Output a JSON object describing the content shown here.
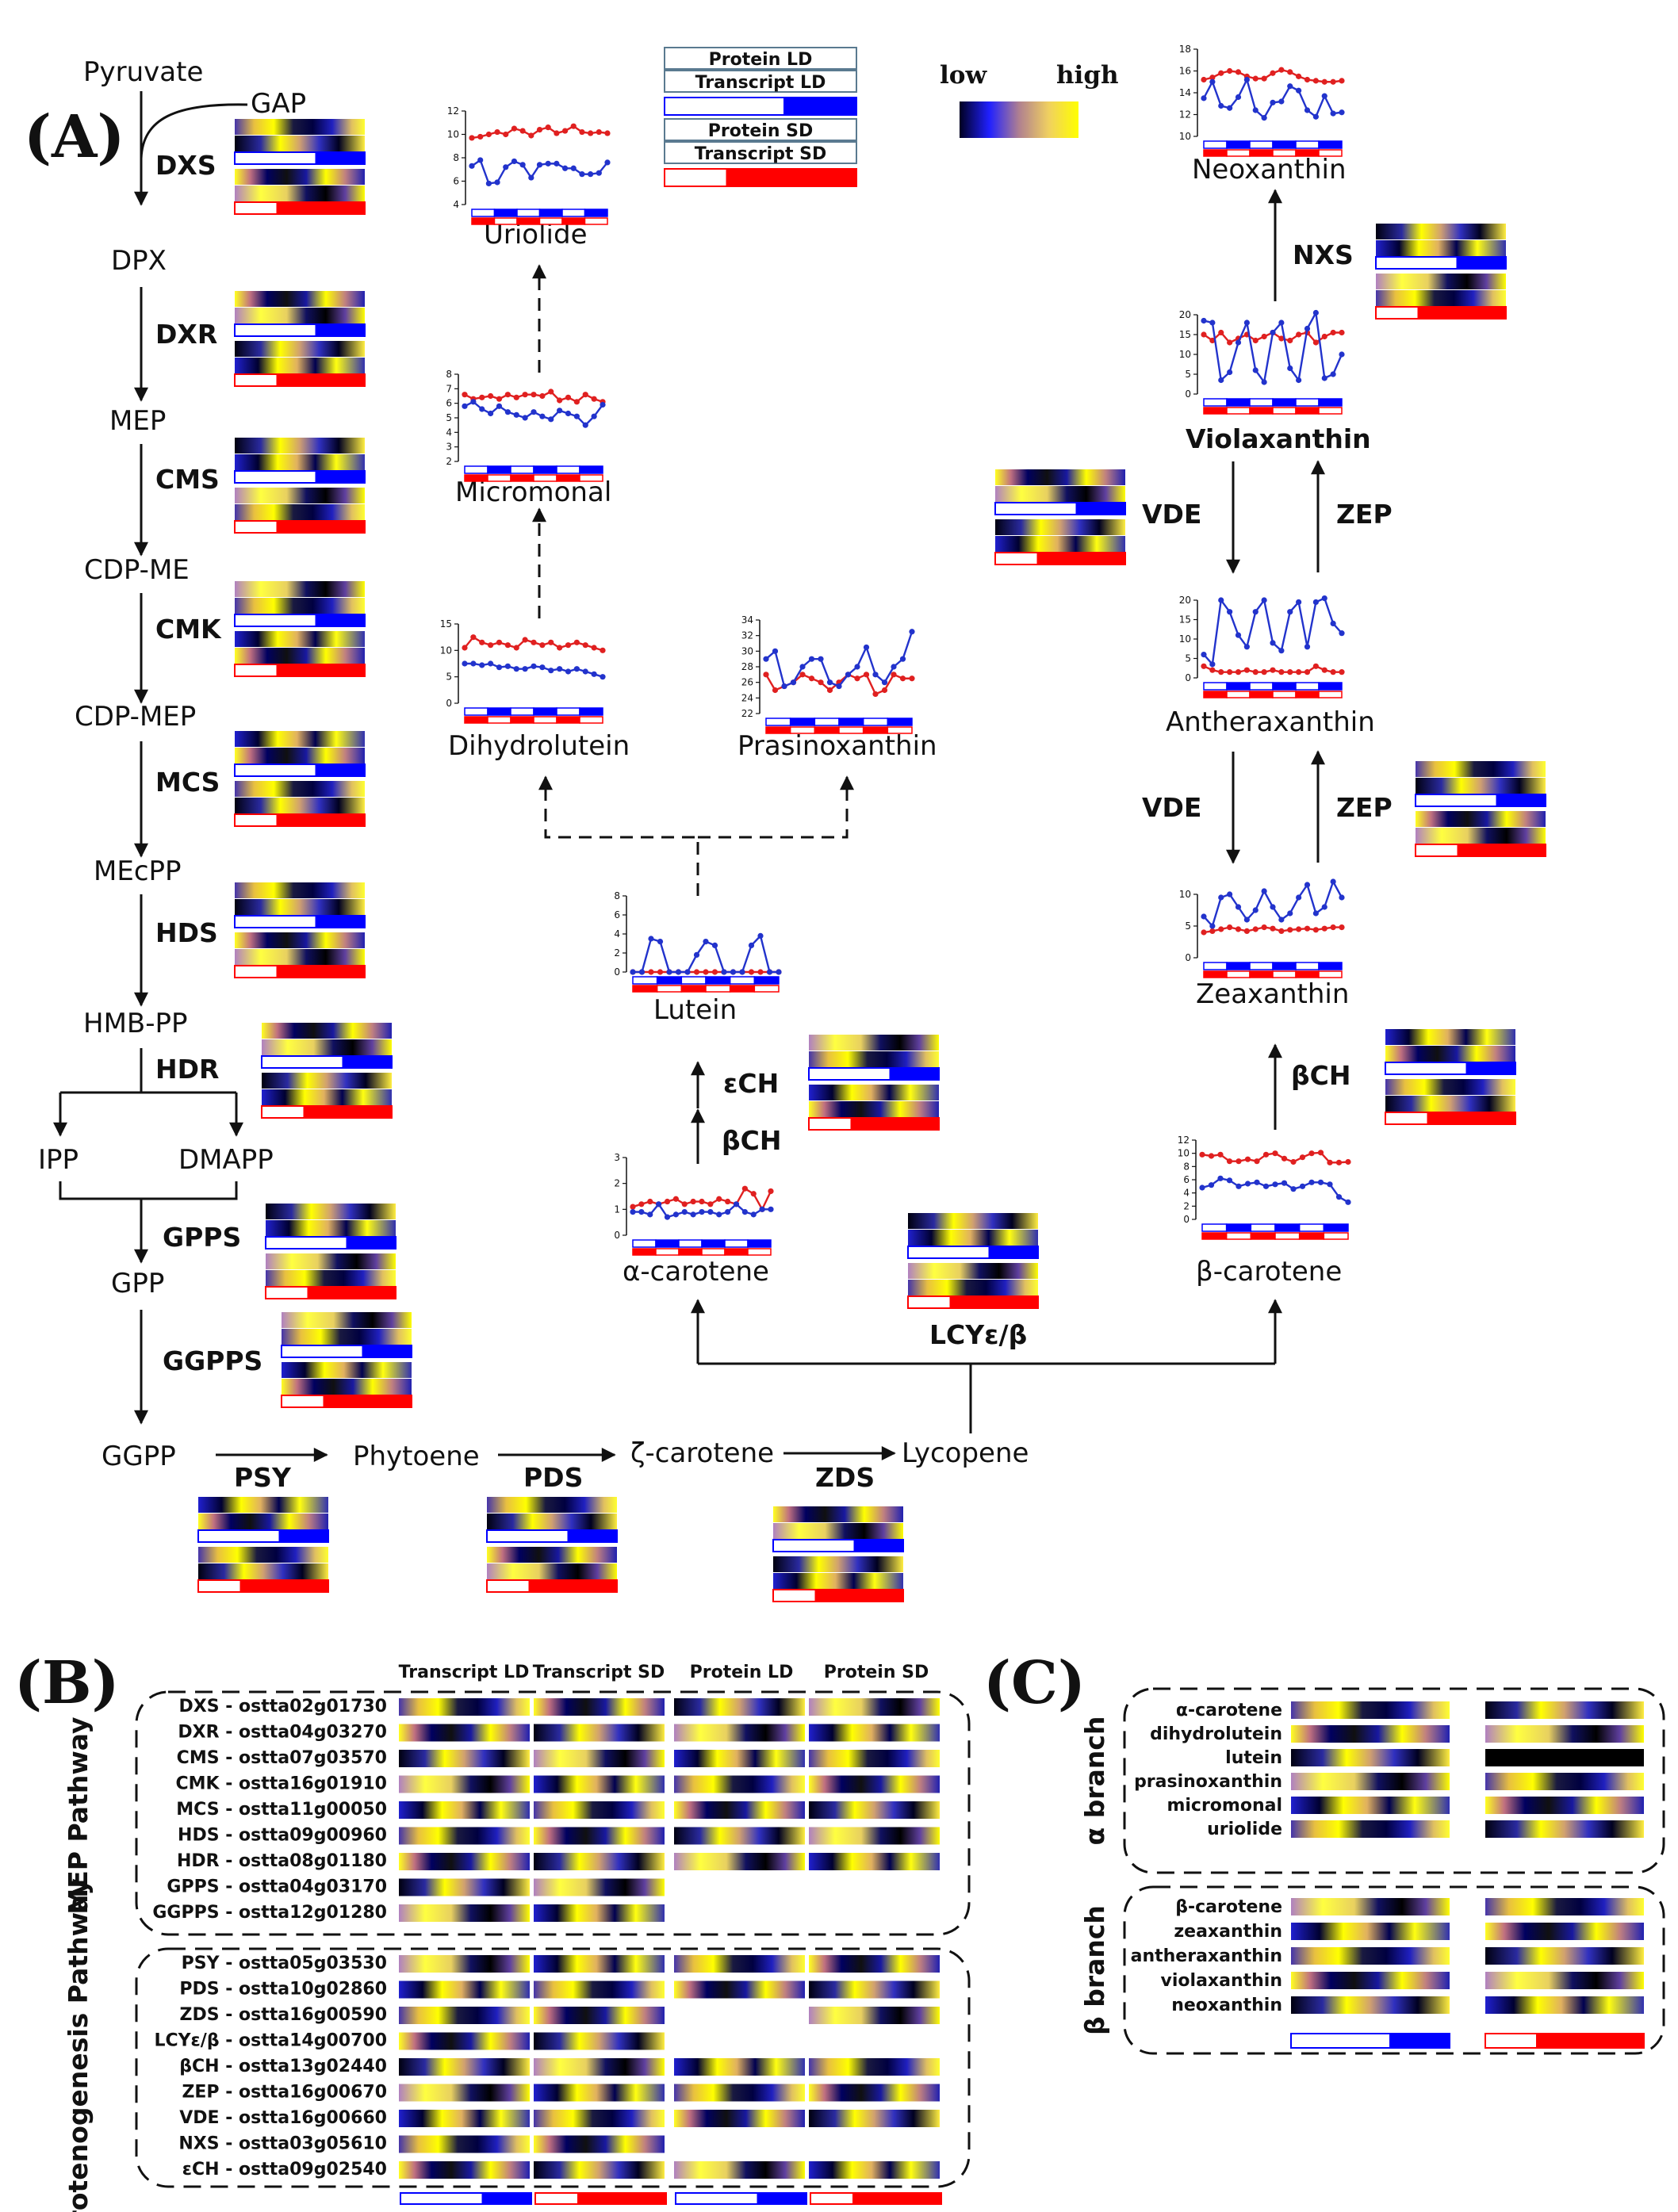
{
  "panels": {
    "a": "(A)",
    "b": "(B)",
    "c": "(C)"
  },
  "colors": {
    "low": "#000080",
    "high": "#ffff00",
    "protein_ld": "#0000ff",
    "transcript_ld": "#0000ff",
    "sd": "#ff0000",
    "ld_line": "#2233cc",
    "sd_line": "#e02020"
  },
  "legend": {
    "low": "low",
    "high": "high",
    "protein_ld": "Protein LD",
    "transcript_ld": "Transcript LD",
    "protein_sd": "Protein SD",
    "transcript_sd": "Transcript SD"
  },
  "mep": {
    "metabolites": [
      "Pyruvate",
      "GAP",
      "DPX",
      "MEP",
      "CDP-ME",
      "CDP-MEP",
      "MEcPP",
      "HMB-PP",
      "IPP",
      "DMAPP",
      "GPP",
      "GGPP"
    ],
    "enzymes": [
      "DXS",
      "DXR",
      "CMS",
      "CMK",
      "MCS",
      "HDS",
      "HDR",
      "GPPS",
      "GGPPS"
    ]
  },
  "carotenoid": {
    "metabolites": [
      "Phytoene",
      "ζ-carotene",
      "Lycopene",
      "α-carotene",
      "β-carotene",
      "Lutein",
      "Dihydrolutein",
      "Prasinoxanthin",
      "Micromonal",
      "Uriolide",
      "Zeaxanthin",
      "Antheraxanthin",
      "Violaxanthin",
      "Neoxanthin"
    ],
    "enzymes": [
      "PSY",
      "PDS",
      "ZDS",
      "LCYɛ/β",
      "βCH",
      "ɛCH",
      "VDE",
      "ZEP",
      "NXS"
    ]
  },
  "chart_data": [
    {
      "type": "line",
      "title": "Uriolide",
      "ylim": [
        4,
        12
      ],
      "yticks": [
        "4",
        "6",
        "8",
        "10",
        "12"
      ],
      "series": [
        {
          "values": [
            9.7,
            9.8,
            10,
            10.2,
            10,
            10.5,
            10.3,
            9.9,
            10.4,
            10.6,
            10.1,
            10.3,
            10.7,
            10.2,
            10.1,
            10.2,
            10.1
          ]
        },
        {
          "values": [
            7.3,
            7.8,
            5.8,
            5.9,
            7.2,
            7.7,
            7.4,
            6.3,
            7.4,
            7.5,
            7.5,
            7.1,
            7.1,
            6.6,
            6.6,
            6.7,
            7.6
          ]
        }
      ]
    },
    {
      "type": "line",
      "title": "Micromonal",
      "ylim": [
        2,
        8
      ],
      "yticks": [
        "2",
        "3",
        "4",
        "5",
        "6",
        "7",
        "8"
      ],
      "series": [
        {
          "values": [
            6.6,
            6.3,
            6.4,
            6.5,
            6.3,
            6.6,
            6.4,
            6.6,
            6.6,
            6.5,
            6.8,
            6.2,
            6.4,
            6.1,
            6.6,
            6.3,
            6.1
          ]
        },
        {
          "values": [
            5.8,
            6.1,
            5.6,
            5.3,
            5.8,
            5.4,
            5.2,
            5.0,
            5.4,
            5.1,
            4.9,
            5.5,
            5.3,
            5.1,
            4.5,
            5.1,
            5.9
          ]
        }
      ]
    },
    {
      "type": "line",
      "title": "Dihydrolutein",
      "ylim": [
        0,
        15
      ],
      "yticks": [
        "0",
        "5",
        "10",
        "15"
      ],
      "series": [
        {
          "values": [
            10.5,
            12.5,
            11.5,
            11,
            11.5,
            11,
            10.5,
            12,
            11.5,
            11,
            11.5,
            10.5,
            11,
            11.5,
            11,
            10.5,
            10
          ]
        },
        {
          "values": [
            7.5,
            7.5,
            7.2,
            7.5,
            6.8,
            7,
            6.5,
            6.5,
            7,
            6.8,
            6.2,
            6.5,
            6,
            6.5,
            6,
            5.5,
            5
          ]
        }
      ]
    },
    {
      "type": "line",
      "title": "Prasinoxanthin",
      "ylim": [
        22,
        34
      ],
      "yticks": [
        "22",
        "24",
        "26",
        "28",
        "30",
        "32",
        "34"
      ],
      "series": [
        {
          "values": [
            27,
            25,
            25.5,
            26,
            27,
            26.5,
            26,
            25,
            26,
            27,
            26.5,
            27,
            24.5,
            25,
            27,
            26.5,
            26.5
          ]
        },
        {
          "values": [
            29,
            30,
            25.5,
            26,
            28,
            29,
            29,
            26,
            25.5,
            27,
            28,
            30.5,
            27,
            26,
            28,
            29,
            32.5
          ]
        }
      ]
    },
    {
      "type": "line",
      "title": "Lutein",
      "ylim": [
        0,
        8
      ],
      "yticks": [
        "0",
        "2",
        "4",
        "6",
        "8"
      ],
      "series": [
        {
          "values": [
            0,
            0,
            0,
            0,
            0,
            0,
            0,
            0,
            0,
            0,
            0,
            0,
            0,
            0,
            0,
            0,
            0
          ]
        },
        {
          "values": [
            0,
            0,
            3.5,
            3.2,
            0,
            0,
            0,
            1.8,
            3.2,
            2.8,
            0,
            0,
            0,
            2.8,
            3.8,
            0,
            0
          ]
        }
      ]
    },
    {
      "type": "line",
      "title": "α-carotene",
      "ylim": [
        0,
        3
      ],
      "yticks": [
        "0",
        "1",
        "2",
        "3"
      ],
      "series": [
        {
          "values": [
            1.1,
            1.2,
            1.3,
            1.2,
            1.3,
            1.4,
            1.2,
            1.3,
            1.3,
            1.2,
            1.4,
            1.3,
            1.2,
            1.8,
            1.6,
            1.0,
            1.7
          ]
        },
        {
          "values": [
            0.9,
            0.9,
            0.8,
            1.2,
            0.7,
            0.8,
            0.9,
            0.8,
            0.9,
            0.9,
            0.8,
            0.9,
            1.2,
            0.9,
            0.8,
            1.0,
            1.0
          ]
        }
      ]
    },
    {
      "type": "line",
      "title": "β-carotene",
      "ylim": [
        0,
        12
      ],
      "yticks": [
        "0",
        "2",
        "4",
        "6",
        "8",
        "10",
        "12"
      ],
      "series": [
        {
          "values": [
            9.8,
            9.6,
            9.8,
            8.8,
            8.8,
            9.1,
            8.8,
            9.8,
            10,
            9.2,
            8.7,
            9.4,
            10,
            10.1,
            8.6,
            8.6,
            8.7
          ]
        },
        {
          "values": [
            4.8,
            5.2,
            6.2,
            5.9,
            5.0,
            5.4,
            5.6,
            5.0,
            5.3,
            5.5,
            4.6,
            5.0,
            5.6,
            5.6,
            5.3,
            3.4,
            2.6
          ]
        }
      ]
    },
    {
      "type": "line",
      "title": "Zeaxanthin",
      "ylim": [
        0,
        10
      ],
      "yticks": [
        "0",
        "5",
        "10"
      ],
      "series": [
        {
          "values": [
            4,
            4.2,
            4.5,
            4.8,
            4.5,
            4.2,
            4.5,
            4.8,
            4.6,
            4.2,
            4.4,
            4.5,
            4.6,
            4.4,
            4.6,
            4.8,
            4.8
          ]
        },
        {
          "values": [
            6.5,
            5,
            9.5,
            10,
            8,
            6,
            7.5,
            10.5,
            8,
            6,
            7,
            9.5,
            11.5,
            7,
            8,
            12,
            9.5
          ]
        }
      ]
    },
    {
      "type": "line",
      "title": "Antheraxanthin",
      "ylim": [
        0,
        20
      ],
      "yticks": [
        "0",
        "5",
        "10",
        "15",
        "20"
      ],
      "series": [
        {
          "values": [
            3,
            2,
            1.5,
            1.5,
            1.5,
            2,
            1.5,
            1.5,
            2,
            1.5,
            1.5,
            1.5,
            1.5,
            3,
            2,
            1.5,
            1.5
          ]
        },
        {
          "values": [
            6,
            3.5,
            20,
            17,
            11,
            8,
            17,
            20,
            9,
            7,
            17,
            19.5,
            8,
            19.5,
            20.5,
            14,
            11.5
          ]
        }
      ]
    },
    {
      "type": "line",
      "title": "Violaxanthin",
      "ylim": [
        0,
        20
      ],
      "yticks": [
        "0",
        "5",
        "10",
        "15",
        "20"
      ],
      "series": [
        {
          "values": [
            15,
            13.5,
            15.5,
            13,
            14,
            15,
            13.5,
            14.5,
            15.5,
            14,
            13.5,
            15,
            15.5,
            13,
            14.5,
            15.5,
            15.5
          ]
        },
        {
          "values": [
            18.5,
            18,
            3.5,
            5.5,
            13,
            18,
            6,
            3,
            15.5,
            18,
            6.5,
            3.5,
            16.5,
            20.5,
            4,
            5,
            10
          ]
        }
      ]
    },
    {
      "type": "line",
      "title": "Neoxanthin",
      "ylim": [
        10,
        18
      ],
      "yticks": [
        "10",
        "12",
        "14",
        "16",
        "18"
      ],
      "series": [
        {
          "values": [
            15.2,
            15.4,
            15.8,
            16,
            15.9,
            15.5,
            15.3,
            15.3,
            15.8,
            16.1,
            15.9,
            15.5,
            15.2,
            15.1,
            15,
            15,
            15.1
          ]
        },
        {
          "values": [
            13.5,
            15,
            12.8,
            12.6,
            13.6,
            15.2,
            12.4,
            11.7,
            13.1,
            13.2,
            14.6,
            14.2,
            12.4,
            11.8,
            13.7,
            12.1,
            12.2
          ]
        }
      ]
    }
  ],
  "panel_b": {
    "headers": [
      "Transcript LD",
      "Transcript SD",
      "Protein LD",
      "Protein SD"
    ],
    "pathways": [
      "MEP Pathway",
      "Carotenogenesis Pathway"
    ],
    "mep_genes": [
      "DXS - ostta02g01730",
      "DXR - ostta04g03270",
      "CMS - ostta07g03570",
      "CMK - ostta16g01910",
      "MCS - ostta11g00050",
      "HDS - ostta09g00960",
      "HDR - ostta08g01180",
      "GPPS - ostta04g03170",
      "GGPPS - ostta12g01280"
    ],
    "caro_genes": [
      "PSY - ostta05g03530",
      "PDS - ostta10g02860",
      "ZDS - ostta16g00590",
      "LCYɛ/β - ostta14g00700",
      "βCH - ostta13g02440",
      "ZEP - ostta16g00670",
      "VDE - ostta16g00660",
      "NXS - ostta03g05610",
      "ɛCH - ostta09g02540"
    ]
  },
  "panel_c": {
    "branches": [
      "α branch",
      "β branch"
    ],
    "alpha": [
      "α-carotene",
      "dihydrolutein",
      "lutein",
      "prasinoxanthin",
      "micromonal",
      "uriolide"
    ],
    "beta": [
      "β-carotene",
      "zeaxanthin",
      "antheraxanthin",
      "violaxanthin",
      "neoxanthin"
    ]
  }
}
